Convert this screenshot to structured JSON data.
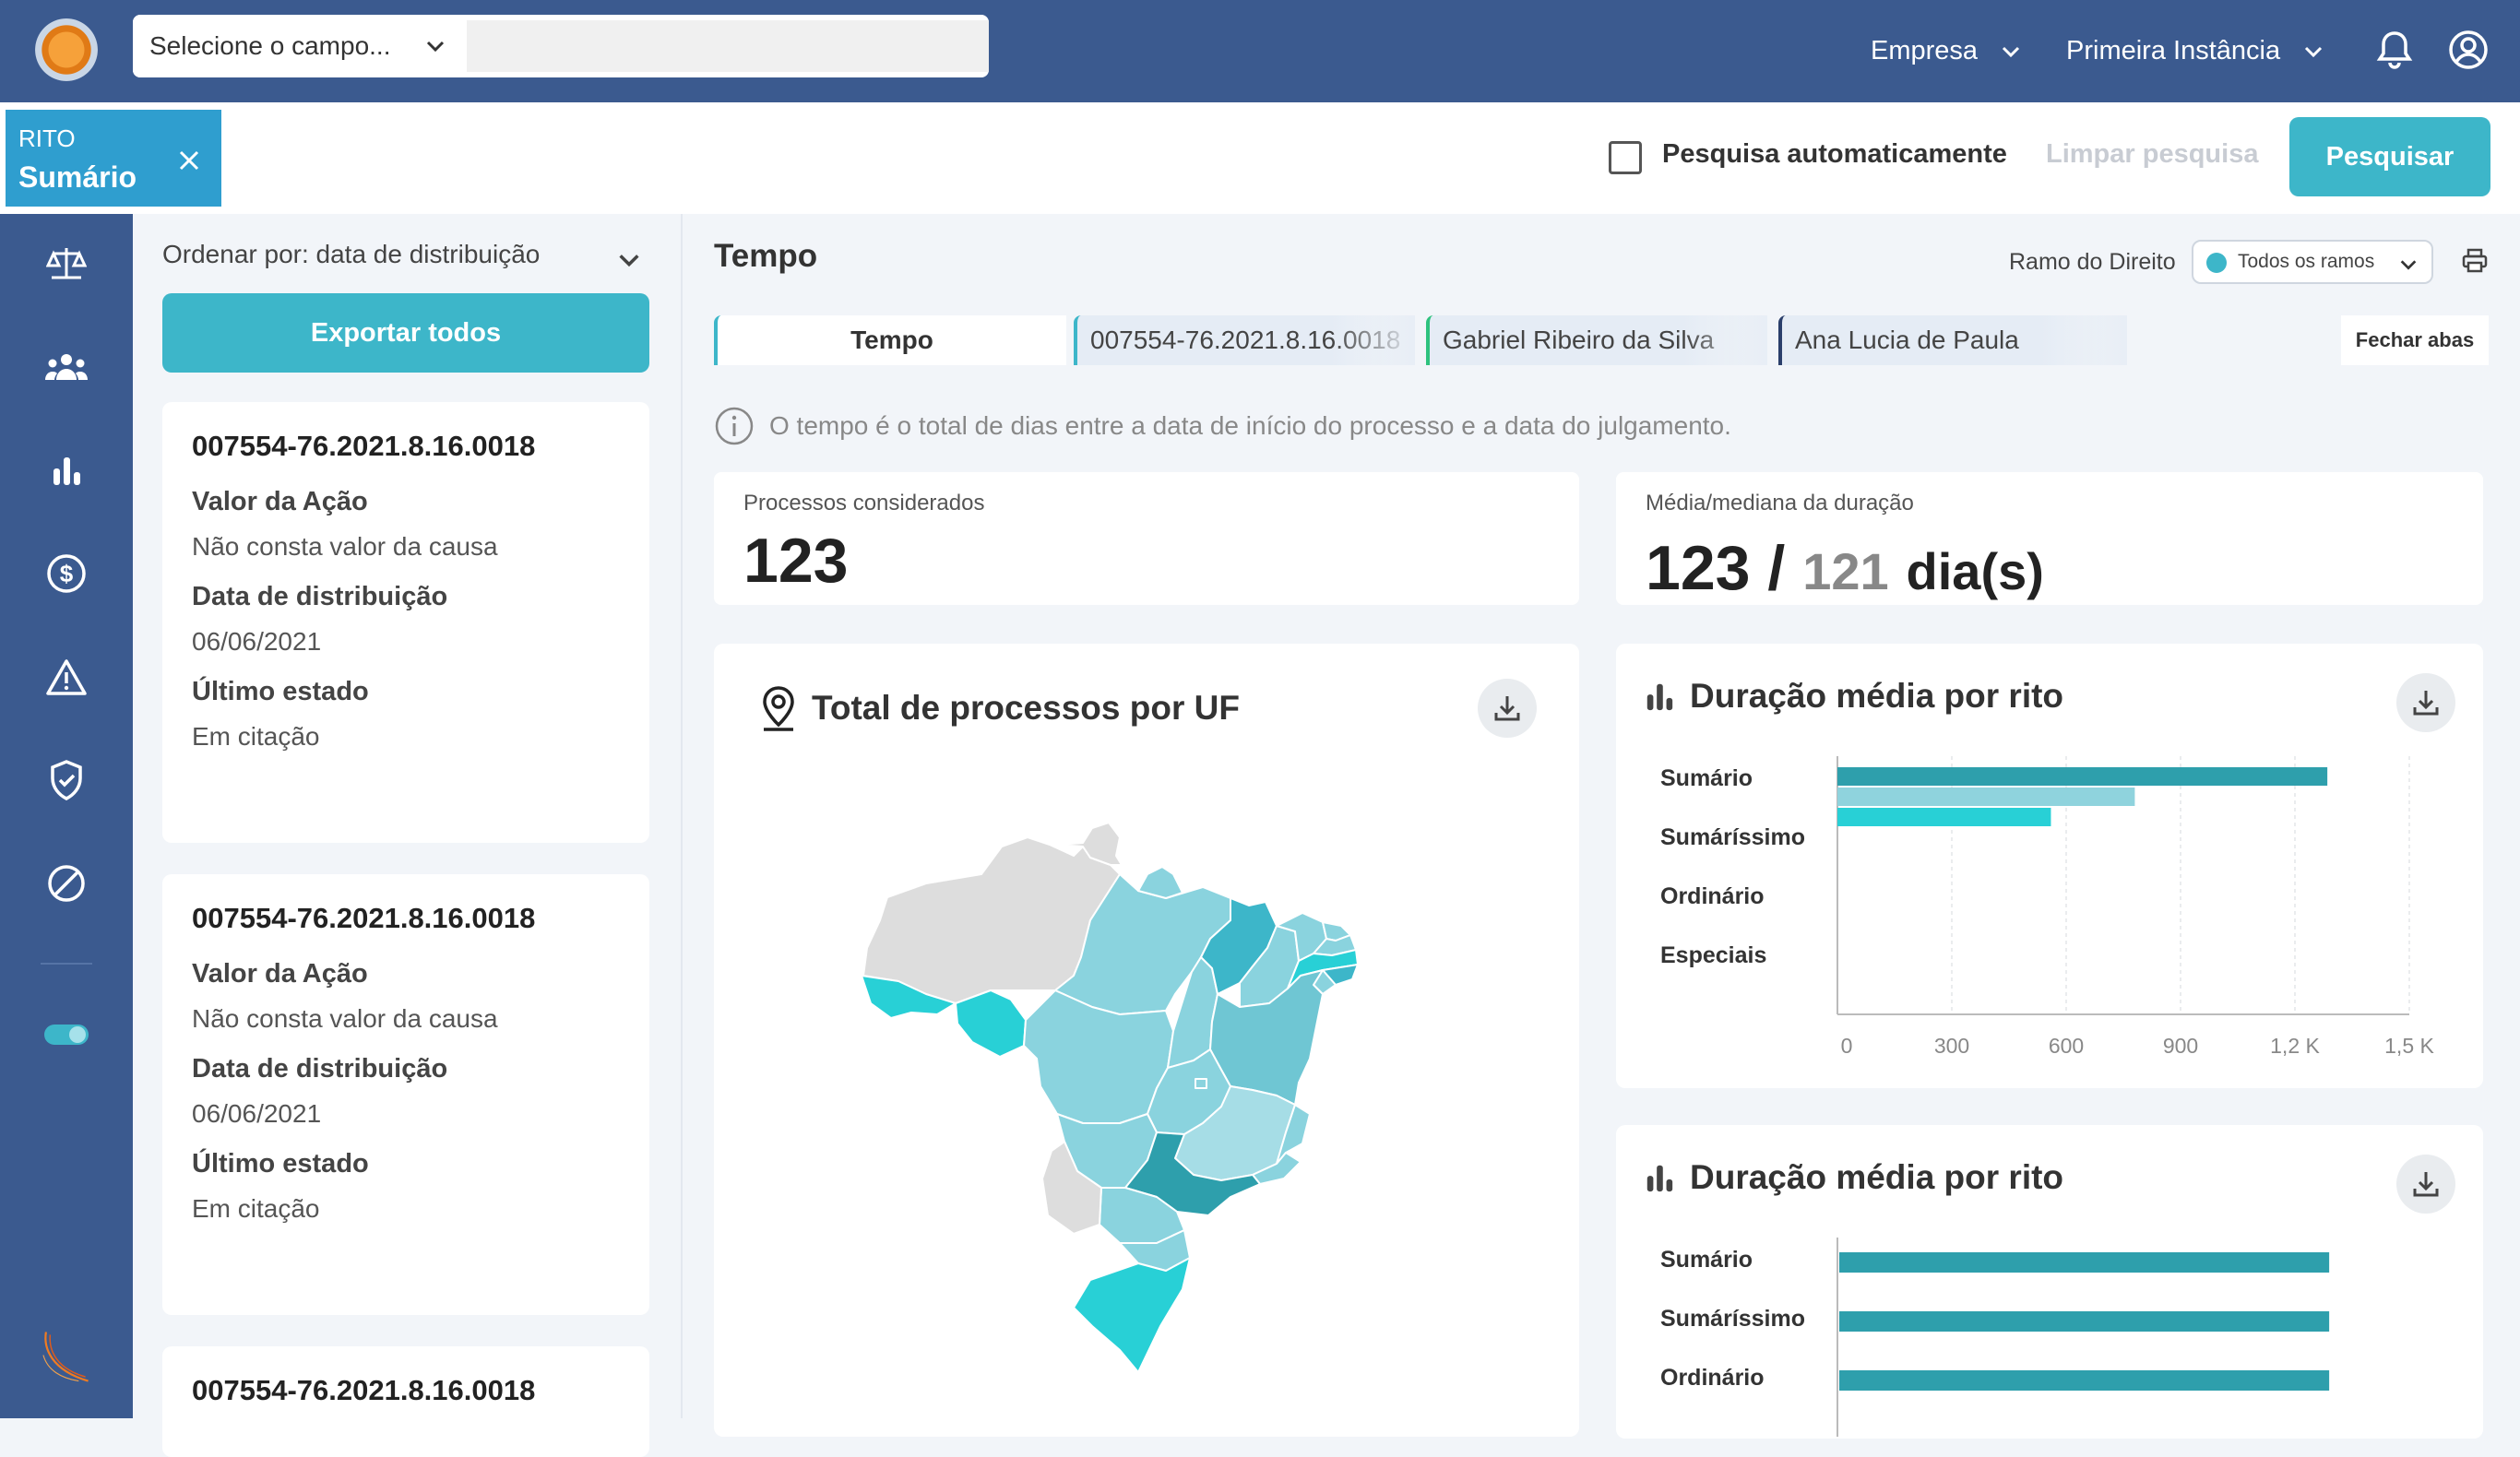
{
  "topbar": {
    "field_select": "Selecione o campo...",
    "company": "Empresa",
    "instance": "Primeira Instância"
  },
  "filter": {
    "chip_label": "RITO",
    "chip_value": "Sumário",
    "auto_search": "Pesquisa automaticamente",
    "clear": "Limpar pesquisa",
    "search": "Pesquisar"
  },
  "sidebar": {
    "items": [
      "scale-icon",
      "people-icon",
      "bar-chart-icon",
      "dollar-icon",
      "warning-icon",
      "shield-check-icon",
      "block-icon",
      "toggle-icon"
    ]
  },
  "list": {
    "sort_label": "Ordenar por: data de distribuição",
    "export": "Exportar todos",
    "cards": [
      {
        "number": "007554-76.2021.8.16.0018",
        "k1": "Valor da Ação",
        "v1": "Não consta valor da causa",
        "k2": "Data de distribuição",
        "v2": "06/06/2021",
        "k3": "Último estado",
        "v3": "Em citação"
      },
      {
        "number": "007554-76.2021.8.16.0018",
        "k1": "Valor da Ação",
        "v1": "Não consta valor da causa",
        "k2": "Data de distribuição",
        "v2": "06/06/2021",
        "k3": "Último estado",
        "v3": "Em citação"
      },
      {
        "number": "007554-76.2021.8.16.0018"
      }
    ]
  },
  "main": {
    "title": "Tempo",
    "ramo_label": "Ramo do Direito",
    "ramo_value": "Todos os ramos",
    "tabs": [
      {
        "label": "Tempo",
        "color": "#3db6c9"
      },
      {
        "label": "007554-76.2021.8.16.0018",
        "color": "#3db6c9"
      },
      {
        "label": "Gabriel Ribeiro da Silva",
        "color": "#2ec27e"
      },
      {
        "label": "Ana Lucia de Paula",
        "color": "#2b3f6b"
      }
    ],
    "close_tabs": "Fechar abas",
    "info": "O tempo é o total de dias entre a data de início do processo e a data do julgamento.",
    "stat1_label": "Processos considerados",
    "stat1_value": "123",
    "stat2_label": "Média/mediana da duração",
    "stat2_mean": "123",
    "stat2_sep": "/",
    "stat2_median": "121",
    "stat2_unit": "dia(s)",
    "map_title": "Total de processos por UF",
    "chart1_title": "Duração média por rito",
    "chart2_title": "Duração média por rito"
  },
  "colors": {
    "accent": "#3db6c9",
    "nav": "#3b5a8f",
    "bar_dark": "#2e9fac",
    "bar_light": "#8fd3dd",
    "bar_cyan": "#28d0d6"
  },
  "chart_data": [
    {
      "type": "bar",
      "orientation": "horizontal",
      "title": "Duração média por rito",
      "categories": [
        "Sumário",
        "Sumáríssimo",
        "Ordinário",
        "Especiais"
      ],
      "series": [
        {
          "values": [
            1285,
            null,
            null,
            null
          ],
          "color": "#2e9fac"
        },
        {
          "values": [
            780,
            null,
            null,
            null
          ],
          "color": "#8fd3dd"
        },
        {
          "values": [
            560,
            null,
            null,
            null
          ],
          "color": "#28d0d6"
        }
      ],
      "xticks": [
        "0",
        "300",
        "600",
        "900",
        "1,2 K",
        "1,5 K"
      ],
      "xlim": [
        0,
        1500
      ],
      "grid": true
    },
    {
      "type": "bar",
      "orientation": "horizontal",
      "title": "Duração média por rito",
      "categories": [
        "Sumário",
        "Sumáríssimo",
        "Ordinário"
      ],
      "values": [
        1285,
        1285,
        1285
      ],
      "xlim": [
        0,
        1500
      ]
    }
  ]
}
